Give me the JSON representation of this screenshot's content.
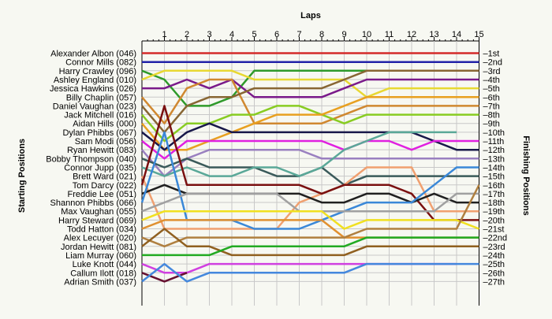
{
  "chart_data": {
    "type": "line",
    "title": "",
    "xlabel": "Laps",
    "ylabel_left": "Starting Positions",
    "ylabel_right": "Finishing Positions",
    "laps": [
      1,
      2,
      3,
      4,
      5,
      6,
      7,
      8,
      9,
      10,
      11,
      12,
      13,
      14,
      15
    ],
    "drivers": [
      {
        "name": "Alexander Albon (046)",
        "color": "#d42a2a",
        "positions": [
          1,
          1,
          1,
          1,
          1,
          1,
          1,
          1,
          1,
          1,
          1,
          1,
          1,
          1,
          1,
          1
        ]
      },
      {
        "name": "Connor Mills (082)",
        "color": "#2222a8",
        "positions": [
          2,
          2,
          2,
          2,
          2,
          2,
          2,
          2,
          2,
          2,
          2,
          2,
          2,
          2,
          2,
          2
        ]
      },
      {
        "name": "Harry Crawley (096)",
        "color": "#2f9a2a",
        "positions": [
          3,
          4,
          7,
          7,
          6,
          3,
          3,
          3,
          3,
          3,
          3
        ]
      },
      {
        "name": "Ashley England (010)",
        "color": "#e8d832",
        "positions": [
          4,
          3,
          3,
          3,
          3,
          4,
          4,
          4,
          4,
          4,
          6,
          5,
          5,
          5,
          5,
          5
        ]
      },
      {
        "name": "Jessica Hawkins (026)",
        "color": "#7a1a8a",
        "positions": [
          5,
          5,
          4,
          5,
          4,
          6,
          6,
          6,
          6,
          5,
          4,
          4,
          4,
          4,
          4,
          4
        ]
      },
      {
        "name": "Billy Chaplin (057)",
        "color": "#d08830",
        "positions": [
          6,
          9,
          5,
          4,
          4,
          9,
          9,
          9,
          9,
          8,
          7,
          7,
          7,
          7,
          7,
          7
        ]
      },
      {
        "name": "Daniel Vaughan (023)",
        "color": "#886633",
        "positions": [
          7,
          10,
          7,
          6,
          6,
          5,
          5,
          5,
          5,
          4,
          3,
          3,
          3,
          3,
          3,
          3
        ]
      },
      {
        "name": "Jack Mitchell (016)",
        "color": "#88cc22",
        "positions": [
          8,
          11,
          9,
          9,
          8,
          8,
          7,
          7,
          8,
          9,
          8,
          8,
          8,
          8,
          8,
          8
        ]
      },
      {
        "name": "Aidan Hills (000)",
        "color": "#e8a020",
        "positions": [
          9,
          12,
          12,
          11,
          10,
          9,
          8,
          8,
          8,
          7,
          6,
          6,
          6,
          6,
          6,
          6
        ]
      },
      {
        "name": "Dylan Phibbs (067)",
        "color": "#18184a",
        "positions": [
          10,
          12,
          10,
          9,
          10,
          10,
          10,
          10,
          10,
          10,
          10,
          10,
          10,
          11,
          12,
          12
        ]
      },
      {
        "name": "Sam Modi (056)",
        "color": "#e020e0",
        "positions": [
          11,
          13,
          11,
          11,
          11,
          11,
          11,
          11,
          11,
          12,
          11,
          11,
          12,
          11,
          11,
          11
        ]
      },
      {
        "name": "Ryan Hewitt (083)",
        "color": "#9a80c0",
        "positions": [
          12,
          15,
          13,
          12,
          12,
          12,
          12,
          12,
          13,
          13,
          13,
          13,
          13,
          13,
          13,
          13
        ]
      },
      {
        "name": "Bobby Thompson (040)",
        "color": "#3a5a5a",
        "positions": [
          13,
          14,
          13,
          14,
          14,
          14,
          15,
          15,
          14,
          16,
          15,
          15,
          15,
          15,
          15,
          15
        ]
      },
      {
        "name": "Connor Jupp (035)",
        "color": "#5aa898",
        "positions": [
          14,
          15,
          14,
          15,
          15,
          14,
          14,
          15,
          14,
          12,
          11,
          10,
          10,
          10,
          10
        ]
      },
      {
        "name": "Brett Ward (021)",
        "color": "#f0a070",
        "positions": [
          15,
          21,
          21,
          21,
          21,
          21,
          21,
          18,
          17,
          16,
          14,
          14,
          14,
          19,
          19,
          19
        ]
      },
      {
        "name": "Tom Darcy (022)",
        "color": "#7a1010",
        "positions": [
          16,
          7,
          16,
          16,
          16,
          16,
          16,
          16,
          17,
          16,
          16,
          16,
          17,
          20,
          20,
          20
        ]
      },
      {
        "name": "Freddie Lee (051)",
        "color": "#202020",
        "positions": [
          17,
          16,
          17,
          17,
          17,
          17,
          17,
          17,
          18,
          18,
          17,
          17,
          18,
          17,
          18,
          18
        ]
      },
      {
        "name": "Shannon Phibbs (066)",
        "color": "#3a88d8",
        "positions": [
          18,
          10,
          20,
          20,
          20,
          21,
          21,
          21,
          20,
          19,
          18,
          18,
          18,
          16,
          14,
          14
        ]
      },
      {
        "name": "Max Vaughan (055)",
        "color": "#a0a0a0",
        "positions": [
          19,
          18,
          17,
          17,
          17,
          17,
          17,
          19,
          19,
          19,
          19,
          19,
          19,
          19,
          17,
          17
        ]
      },
      {
        "name": "Harry Steward (069)",
        "color": "#f0e020",
        "positions": [
          20,
          19,
          19,
          19,
          19,
          19,
          19,
          19,
          19,
          21,
          20,
          20,
          20,
          20,
          20,
          21
        ]
      },
      {
        "name": "Todd Hatton (034)",
        "color": "#e09030",
        "positions": [
          21,
          20,
          20,
          20,
          20,
          20,
          20,
          20,
          20,
          22,
          22,
          22,
          22,
          22,
          22,
          22
        ]
      },
      {
        "name": "Alex Lecuyer (020)",
        "color": "#b08040",
        "positions": [
          22,
          23,
          22,
          22,
          22,
          22,
          22,
          22,
          22,
          22,
          21,
          21,
          21,
          21,
          21,
          16
        ]
      },
      {
        "name": "Jordan Hewitt (081)",
        "color": "#906020",
        "positions": [
          23,
          21,
          23,
          23,
          24,
          24,
          24,
          24,
          24,
          24,
          23,
          23,
          23,
          23,
          23,
          23
        ]
      },
      {
        "name": "Liam Murray (060)",
        "color": "#22aa22",
        "positions": [
          24,
          24,
          24,
          24,
          23,
          23,
          23,
          23,
          23,
          23,
          22,
          22,
          22,
          22,
          22,
          22
        ]
      },
      {
        "name": "Luke Knott (044)",
        "color": "#d040e0",
        "positions": [
          25,
          26,
          26,
          25,
          25,
          25,
          25,
          25,
          25,
          25,
          25,
          25,
          25,
          25,
          25
        ]
      },
      {
        "name": "Callum Ilott (018)",
        "color": "#661030",
        "positions": [
          26,
          27,
          26
        ]
      },
      {
        "name": "Adrian Smith (037)",
        "color": "#4488dd",
        "positions": [
          27,
          25,
          27,
          26,
          26,
          26,
          26,
          26,
          26,
          26,
          25,
          25,
          25,
          25,
          25,
          25
        ]
      }
    ],
    "finishing_labels": [
      "1st",
      "2nd",
      "3rd",
      "4th",
      "5th",
      "6th",
      "7th",
      "8th",
      "9th",
      "10th",
      "11th",
      "12th",
      "13th",
      "14th",
      "15th",
      "16th",
      "17th",
      "18th",
      "19th",
      "20th",
      "21st",
      "22nd",
      "23rd",
      "24th",
      "25th",
      "26th",
      "27th"
    ]
  }
}
